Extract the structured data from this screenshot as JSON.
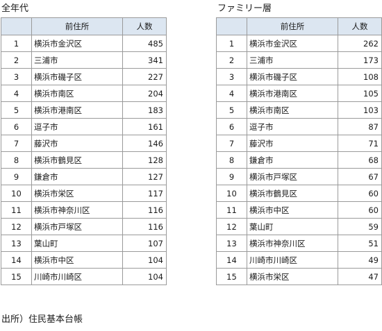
{
  "left": {
    "title": "全年代",
    "header": {
      "rank": "",
      "place": "前住所",
      "count": "人数"
    },
    "rows": [
      {
        "rank": "1",
        "place": "横浜市金沢区",
        "count": "485"
      },
      {
        "rank": "2",
        "place": "三浦市",
        "count": "341"
      },
      {
        "rank": "3",
        "place": "横浜市磯子区",
        "count": "227"
      },
      {
        "rank": "4",
        "place": "横浜市南区",
        "count": "204"
      },
      {
        "rank": "5",
        "place": "横浜市港南区",
        "count": "183"
      },
      {
        "rank": "6",
        "place": "逗子市",
        "count": "161"
      },
      {
        "rank": "7",
        "place": "藤沢市",
        "count": "146"
      },
      {
        "rank": "8",
        "place": "横浜市鶴見区",
        "count": "128"
      },
      {
        "rank": "9",
        "place": "鎌倉市",
        "count": "127"
      },
      {
        "rank": "10",
        "place": "横浜市栄区",
        "count": "117"
      },
      {
        "rank": "11",
        "place": "横浜市神奈川区",
        "count": "116"
      },
      {
        "rank": "12",
        "place": "横浜市戸塚区",
        "count": "116"
      },
      {
        "rank": "13",
        "place": "葉山町",
        "count": "107"
      },
      {
        "rank": "14",
        "place": "横浜市中区",
        "count": "104"
      },
      {
        "rank": "15",
        "place": "川崎市川崎区",
        "count": "104"
      }
    ]
  },
  "right": {
    "title": "ファミリー層",
    "header": {
      "rank": "",
      "place": "前住所",
      "count": "人数"
    },
    "rows": [
      {
        "rank": "1",
        "place": "横浜市金沢区",
        "count": "262"
      },
      {
        "rank": "2",
        "place": "三浦市",
        "count": "173"
      },
      {
        "rank": "3",
        "place": "横浜市磯子区",
        "count": "108"
      },
      {
        "rank": "4",
        "place": "横浜市港南区",
        "count": "105"
      },
      {
        "rank": "5",
        "place": "横浜市南区",
        "count": "103"
      },
      {
        "rank": "6",
        "place": "逗子市",
        "count": "87"
      },
      {
        "rank": "7",
        "place": "藤沢市",
        "count": "71"
      },
      {
        "rank": "8",
        "place": "鎌倉市",
        "count": "68"
      },
      {
        "rank": "9",
        "place": "横浜市戸塚区",
        "count": "67"
      },
      {
        "rank": "10",
        "place": "横浜市鶴見区",
        "count": "60"
      },
      {
        "rank": "11",
        "place": "横浜市中区",
        "count": "60"
      },
      {
        "rank": "12",
        "place": "葉山町",
        "count": "59"
      },
      {
        "rank": "13",
        "place": "横浜市神奈川区",
        "count": "51"
      },
      {
        "rank": "14",
        "place": "川崎市川崎区",
        "count": "49"
      },
      {
        "rank": "15",
        "place": "横浜市栄区",
        "count": "47"
      }
    ]
  },
  "source": "出所）住民基本台帳",
  "colors": {
    "header_bg": "#dce6f1",
    "border": "#9a9a9a"
  }
}
